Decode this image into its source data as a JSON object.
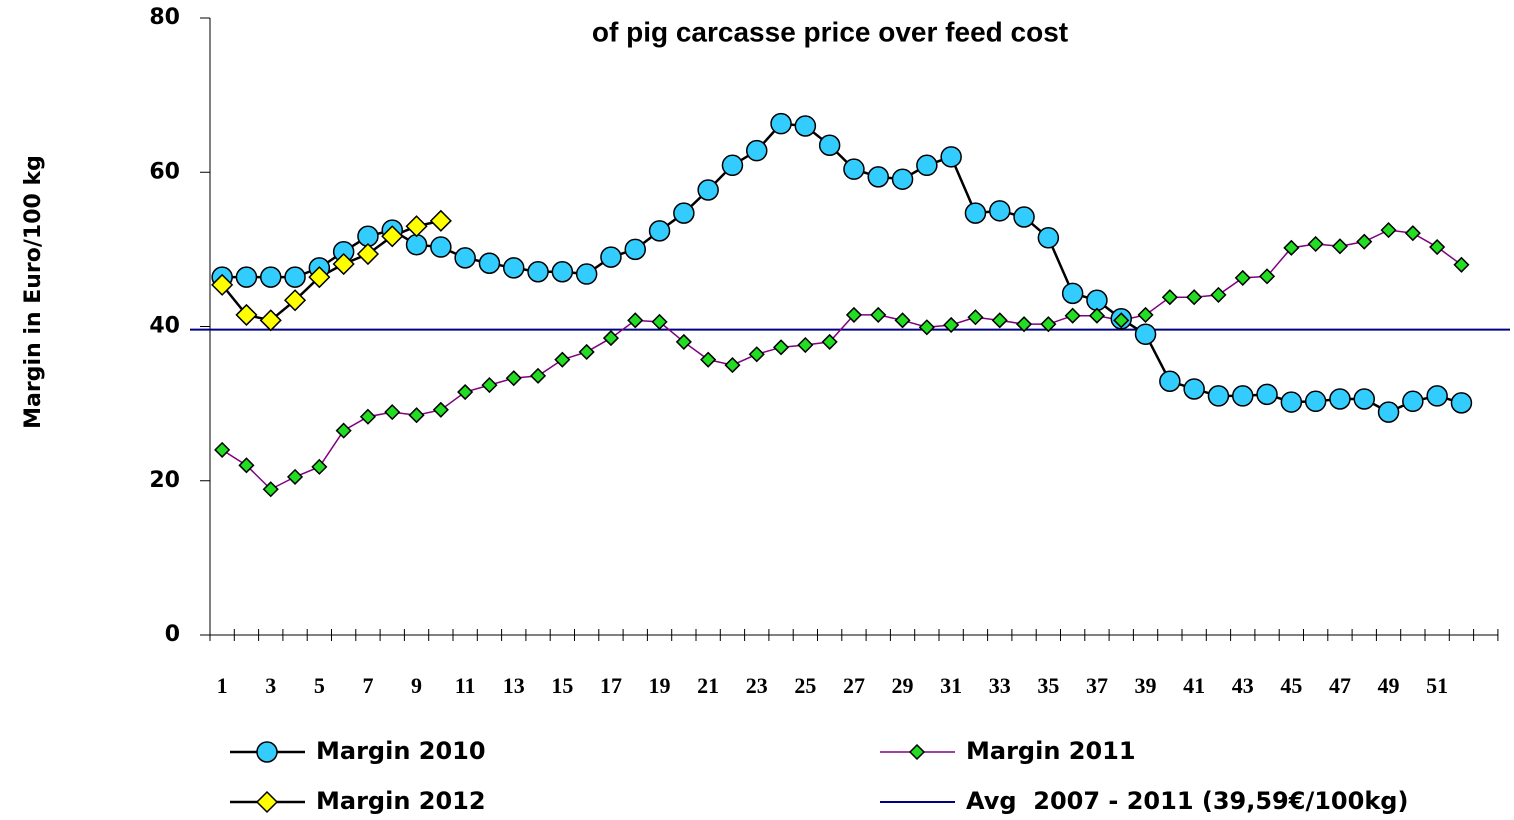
{
  "chart_data": {
    "type": "line",
    "title": "of pig carcasse price over feed cost",
    "y_label": "Margin in Euro/100 kg",
    "categories": [
      1,
      null,
      3,
      null,
      5,
      null,
      7,
      null,
      9,
      null,
      11,
      null,
      13,
      null,
      15,
      null,
      17,
      null,
      19,
      null,
      21,
      null,
      23,
      null,
      25,
      null,
      27,
      null,
      29,
      null,
      31,
      null,
      33,
      null,
      35,
      null,
      37,
      null,
      39,
      null,
      41,
      null,
      43,
      null,
      45,
      null,
      47,
      null,
      49,
      null,
      51,
      null,
      null
    ],
    "ylim": [
      0,
      80
    ],
    "yticks": [
      0,
      20,
      40,
      60,
      80
    ],
    "series": [
      {
        "name": "Margin 2010",
        "color": "#33ccff",
        "marker": "circle",
        "line_color": "#000000",
        "values": [
          46.4,
          46.4,
          46.4,
          46.4,
          47.6,
          49.7,
          51.7,
          52.5,
          50.6,
          50.3,
          48.9,
          48.2,
          47.6,
          47.1,
          47.1,
          46.8,
          49.0,
          50.0,
          52.4,
          54.7,
          57.7,
          60.9,
          62.8,
          66.3,
          66.0,
          63.5,
          60.4,
          59.4,
          59.1,
          60.9,
          62.0,
          54.7,
          55.0,
          54.2,
          51.5,
          44.3,
          43.4,
          41.0,
          39.0,
          32.9,
          31.9,
          31.0,
          31.0,
          31.2,
          30.2,
          30.3,
          30.6,
          30.6,
          28.9,
          30.3,
          31.0,
          30.1,
          null
        ]
      },
      {
        "name": "Margin 2011",
        "color": "#22dd22",
        "marker": "diamond",
        "line_color": "#800080",
        "values": [
          24.0,
          22.0,
          18.9,
          20.5,
          21.8,
          26.5,
          28.3,
          28.9,
          28.5,
          29.2,
          31.5,
          32.4,
          33.3,
          33.6,
          35.7,
          36.7,
          38.5,
          40.8,
          40.6,
          38.0,
          35.7,
          35.0,
          36.4,
          37.3,
          37.6,
          38.0,
          41.5,
          41.5,
          40.8,
          39.9,
          40.2,
          41.2,
          40.8,
          40.3,
          40.3,
          41.4,
          41.4,
          40.8,
          41.5,
          43.8,
          43.8,
          44.1,
          46.3,
          46.5,
          50.2,
          50.7,
          50.4,
          51.0,
          52.5,
          52.1,
          50.3,
          48.0,
          null
        ]
      },
      {
        "name": "Margin 2012",
        "color": "#ffff00",
        "marker": "diamond-large",
        "line_color": "#000000",
        "values": [
          45.4,
          41.5,
          40.8,
          43.4,
          46.4,
          48.1,
          49.4,
          51.7,
          53.0,
          53.7,
          null,
          null,
          null,
          null,
          null,
          null,
          null,
          null,
          null,
          null,
          null,
          null,
          null,
          null,
          null,
          null,
          null,
          null,
          null,
          null,
          null,
          null,
          null,
          null,
          null,
          null,
          null,
          null,
          null,
          null,
          null,
          null,
          null,
          null,
          null,
          null,
          null,
          null,
          null,
          null,
          null,
          null,
          null
        ]
      }
    ],
    "average": {
      "name": "Avg  2007 - 2011 (39,59€/100kg)",
      "value": 39.59,
      "color": "#000080"
    }
  }
}
